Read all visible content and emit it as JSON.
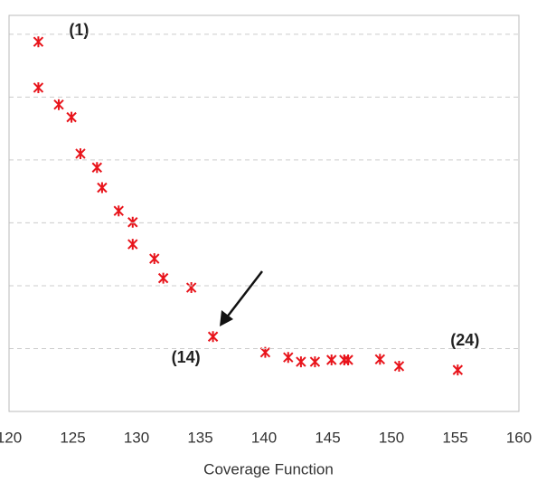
{
  "chart_data": {
    "type": "scatter",
    "xlabel": "Coverage Function",
    "annotations": [
      "(1)",
      "(14)",
      "(24)"
    ],
    "series": [
      {
        "color": "#e8141b",
        "x": [
          122.3,
          122.3,
          123.9,
          124.9,
          125.6,
          126.9,
          127.3,
          128.6,
          129.7,
          129.7,
          131.4,
          132.1,
          134.3,
          136.0,
          140.1,
          141.9,
          142.9,
          144.0,
          145.3,
          146.3,
          146.6,
          149.1,
          150.6,
          155.2
        ],
        "values": [
          5.88,
          5.15,
          4.88,
          4.68,
          4.1,
          3.88,
          3.56,
          3.19,
          3.01,
          2.66,
          2.43,
          2.12,
          1.97,
          1.19,
          0.94,
          0.86,
          0.79,
          0.79,
          0.82,
          0.82,
          0.82,
          0.83,
          0.72,
          0.66
        ]
      }
    ],
    "xlim": [
      120,
      160
    ],
    "xticks": [
      120,
      125,
      130,
      135,
      140,
      145,
      150,
      155,
      160
    ],
    "ylim": [
      0,
      6.3
    ],
    "yticks": [
      1,
      2,
      3,
      4,
      5,
      6
    ],
    "grid": true
  }
}
